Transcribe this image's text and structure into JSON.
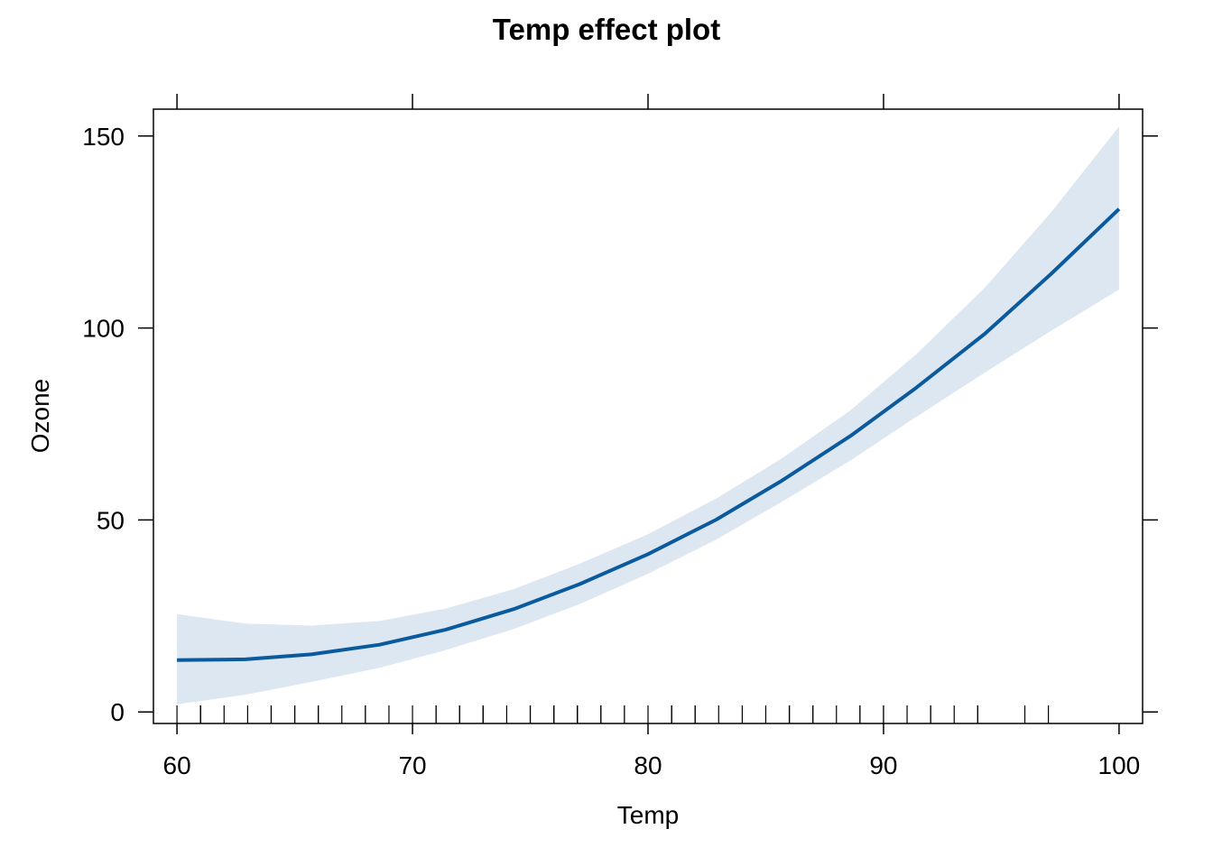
{
  "chart_data": {
    "type": "line",
    "title": "Temp effect plot",
    "xlabel": "Temp",
    "ylabel": "Ozone",
    "xlim": [
      59,
      101
    ],
    "ylim": [
      -3,
      157
    ],
    "x_ticks": [
      60,
      70,
      80,
      90,
      100
    ],
    "y_ticks": [
      0,
      50,
      100,
      150
    ],
    "x_tick_labels": [
      "60",
      "70",
      "80",
      "90",
      "100"
    ],
    "y_tick_labels": [
      "0",
      "50",
      "100",
      "150"
    ],
    "grid": false,
    "legend": "none",
    "colors": {
      "line": "#0b5a9e",
      "band": "#dce7f1",
      "axis": "#000000"
    },
    "series": [
      {
        "x": [
          60,
          62.9,
          65.7,
          68.6,
          71.4,
          74.3,
          77.1,
          80,
          82.9,
          85.7,
          88.6,
          91.4,
          94.3,
          97.1,
          100
        ],
        "fit": [
          13.5,
          13.7,
          15,
          17.5,
          21.4,
          26.8,
          33.3,
          41.1,
          50.1,
          60.3,
          71.9,
          84.5,
          98.5,
          114,
          131
        ],
        "lower": [
          2,
          4.5,
          7.8,
          11.5,
          16.1,
          21.6,
          28.1,
          36,
          44.9,
          54.8,
          65.5,
          76.9,
          88.4,
          99.2,
          110
        ],
        "upper": [
          25.5,
          23,
          22.5,
          23.7,
          26.9,
          32,
          38.6,
          46.3,
          55.6,
          66.1,
          78.6,
          93.2,
          110.5,
          130,
          152.5
        ]
      }
    ],
    "rug": [
      60,
      61,
      61,
      61,
      62,
      63,
      64,
      64,
      65,
      65,
      66,
      66,
      67,
      68,
      68,
      69,
      70,
      71,
      71,
      72,
      72,
      73,
      73,
      73,
      74,
      75,
      75,
      76,
      76,
      76,
      76,
      77,
      77,
      77,
      78,
      78,
      79,
      79,
      80,
      81,
      81,
      81,
      81,
      82,
      82,
      83,
      84,
      85,
      86,
      86,
      86,
      87,
      87,
      88,
      89,
      89,
      90,
      90,
      91,
      92,
      92,
      93,
      94,
      94,
      96,
      97
    ]
  }
}
